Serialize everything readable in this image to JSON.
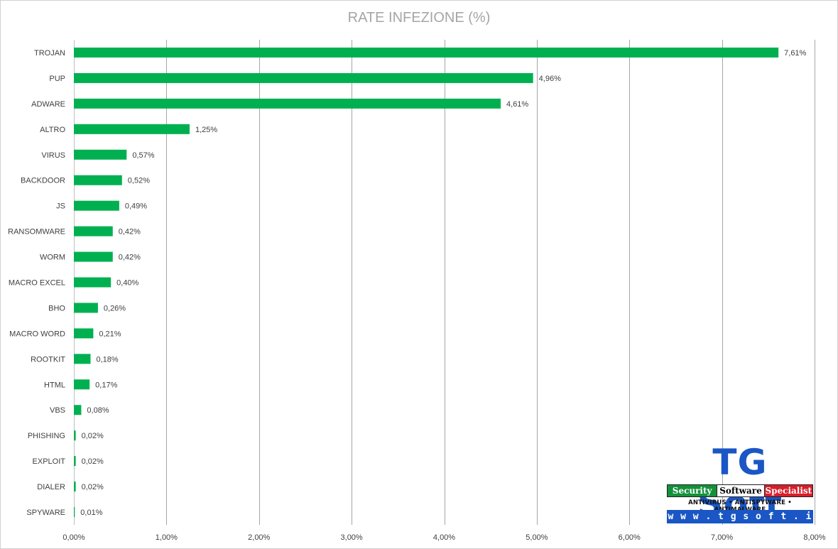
{
  "chart_data": {
    "type": "bar",
    "orientation": "horizontal",
    "title": "RATE INFEZIONE (%)",
    "categories": [
      "TROJAN",
      "PUP",
      "ADWARE",
      "ALTRO",
      "VIRUS",
      "BACKDOOR",
      "JS",
      "RANSOMWARE",
      "WORM",
      "MACRO EXCEL",
      "BHO",
      "MACRO WORD",
      "ROOTKIT",
      "HTML",
      "VBS",
      "PHISHING",
      "EXPLOIT",
      "DIALER",
      "SPYWARE"
    ],
    "values": [
      7.61,
      4.96,
      4.61,
      1.25,
      0.57,
      0.52,
      0.49,
      0.42,
      0.42,
      0.4,
      0.26,
      0.21,
      0.18,
      0.17,
      0.08,
      0.02,
      0.02,
      0.02,
      0.01
    ],
    "data_labels": [
      "7,61%",
      "4,96%",
      "4,61%",
      "1,25%",
      "0,57%",
      "0,52%",
      "0,49%",
      "0,42%",
      "0,42%",
      "0,40%",
      "0,26%",
      "0,21%",
      "0,18%",
      "0,17%",
      "0,08%",
      "0,02%",
      "0,02%",
      "0,02%",
      "0,01%"
    ],
    "xlim": [
      0,
      8
    ],
    "x_ticks": [
      0,
      1,
      2,
      3,
      4,
      5,
      6,
      7,
      8
    ],
    "x_tick_labels": [
      "0,00%",
      "1,00%",
      "2,00%",
      "3,00%",
      "4,00%",
      "5,00%",
      "6,00%",
      "7,00%",
      "8,00%"
    ],
    "grid": "vertical",
    "legend": "none",
    "bar_color": "#00b050"
  },
  "logo": {
    "brand": "TG Soft",
    "tagline_1": "Security",
    "tagline_2": "Software",
    "tagline_3": "Specialist",
    "subline": "ANTIVIRUS • ANTISPYWARE • ANTIMALWARE",
    "url": "w w w . t g s o f t . i t"
  }
}
